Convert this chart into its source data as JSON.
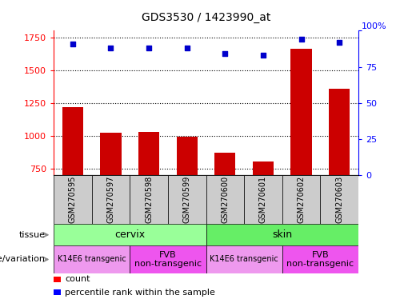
{
  "title": "GDS3530 / 1423990_at",
  "samples": [
    "GSM270595",
    "GSM270597",
    "GSM270598",
    "GSM270599",
    "GSM270600",
    "GSM270601",
    "GSM270602",
    "GSM270603"
  ],
  "counts": [
    1220,
    1020,
    1030,
    990,
    870,
    800,
    1660,
    1360
  ],
  "percentile_ranks": [
    91,
    88,
    88,
    88,
    84,
    83,
    94,
    92
  ],
  "ylim_left": [
    700,
    1800
  ],
  "ylim_right": [
    0,
    100
  ],
  "yticks_left": [
    750,
    1000,
    1250,
    1500,
    1750
  ],
  "yticks_right": [
    0,
    25,
    50,
    75,
    100
  ],
  "bar_color": "#cc0000",
  "scatter_color": "#0000cc",
  "tissue_row": {
    "label": "tissue",
    "groups": [
      {
        "text": "cervix",
        "start": 0,
        "end": 3,
        "color": "#99ff99"
      },
      {
        "text": "skin",
        "start": 4,
        "end": 7,
        "color": "#66ee66"
      }
    ]
  },
  "genotype_row": {
    "label": "genotype/variation",
    "groups": [
      {
        "text": "K14E6 transgenic",
        "start": 0,
        "end": 1,
        "color": "#ee99ee",
        "fontsize": 7
      },
      {
        "text": "FVB\nnon-transgenic",
        "start": 2,
        "end": 3,
        "color": "#ee55ee",
        "fontsize": 8
      },
      {
        "text": "K14E6 transgenic",
        "start": 4,
        "end": 5,
        "color": "#ee99ee",
        "fontsize": 7
      },
      {
        "text": "FVB\nnon-transgenic",
        "start": 6,
        "end": 7,
        "color": "#ee55ee",
        "fontsize": 8
      }
    ]
  }
}
